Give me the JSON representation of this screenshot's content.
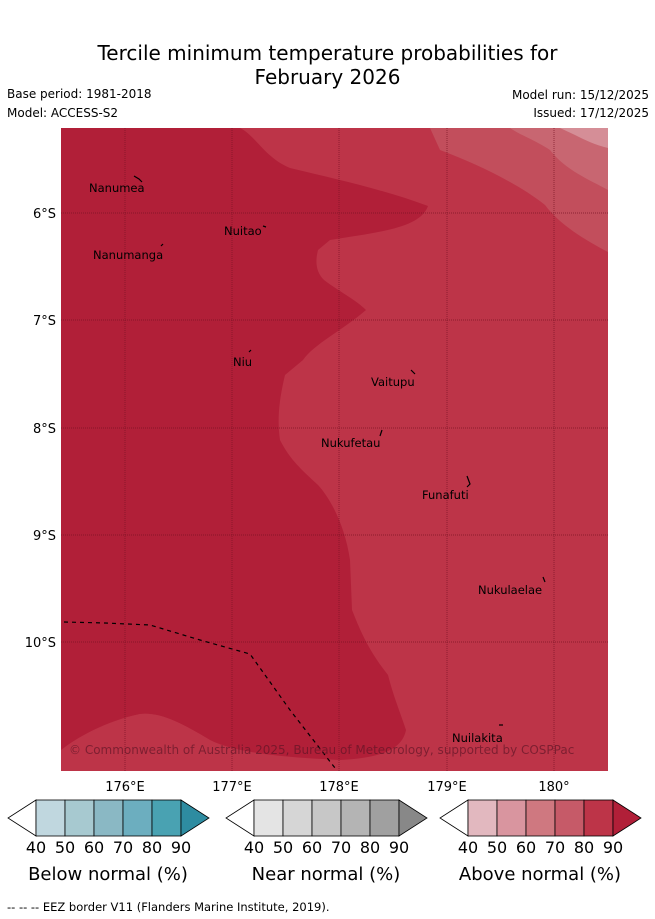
{
  "title_line1": "Tercile minimum temperature probabilities for",
  "title_line2": "February 2026",
  "base_period": "Base period: 1981-2018",
  "model": "Model: ACCESS-S2",
  "model_run": "Model run: 15/12/2025",
  "issued": "Issued: 17/12/2025",
  "copyright": "© Commonwealth of Australia 2025, Bureau of Meteorology, supported by COSPPac",
  "places": [
    "Nanumea",
    "Nuitao",
    "Nanumanga",
    "Niu",
    "Vaitupu",
    "Nukufetau",
    "Funafuti",
    "Nukulaelae",
    "Nuilakita"
  ],
  "lat_labels": [
    "6°S",
    "7°S",
    "8°S",
    "9°S",
    "10°S"
  ],
  "lon_labels": [
    "176°E",
    "177°E",
    "178°E",
    "179°E",
    "180°"
  ],
  "colorbars": [
    {
      "title": "Below normal (%)",
      "ticks": [
        "40",
        "50",
        "60",
        "70",
        "80",
        "90"
      ],
      "colors": [
        "#ffffff",
        "#c0d7df",
        "#a7c9d0",
        "#8ab8c4",
        "#6caebf",
        "#49a2b2",
        "#2e8ca1"
      ]
    },
    {
      "title": "Near normal (%)",
      "ticks": [
        "40",
        "50",
        "60",
        "70",
        "80",
        "90"
      ],
      "colors": [
        "#ffffff",
        "#e4e4e4",
        "#d6d6d6",
        "#c7c7c7",
        "#b4b4b4",
        "#a0a0a0",
        "#888888"
      ]
    },
    {
      "title": "Above normal (%)",
      "ticks": [
        "40",
        "50",
        "60",
        "70",
        "80",
        "90"
      ],
      "colors": [
        "#ffffff",
        "#e2b8bf",
        "#d9959f",
        "#cf7880",
        "#c65a68",
        "#bd3448",
        "#b11f38"
      ]
    }
  ],
  "footer": "--  --  -- EEZ border V11 (Flanders Marine Institute, 2019)."
}
